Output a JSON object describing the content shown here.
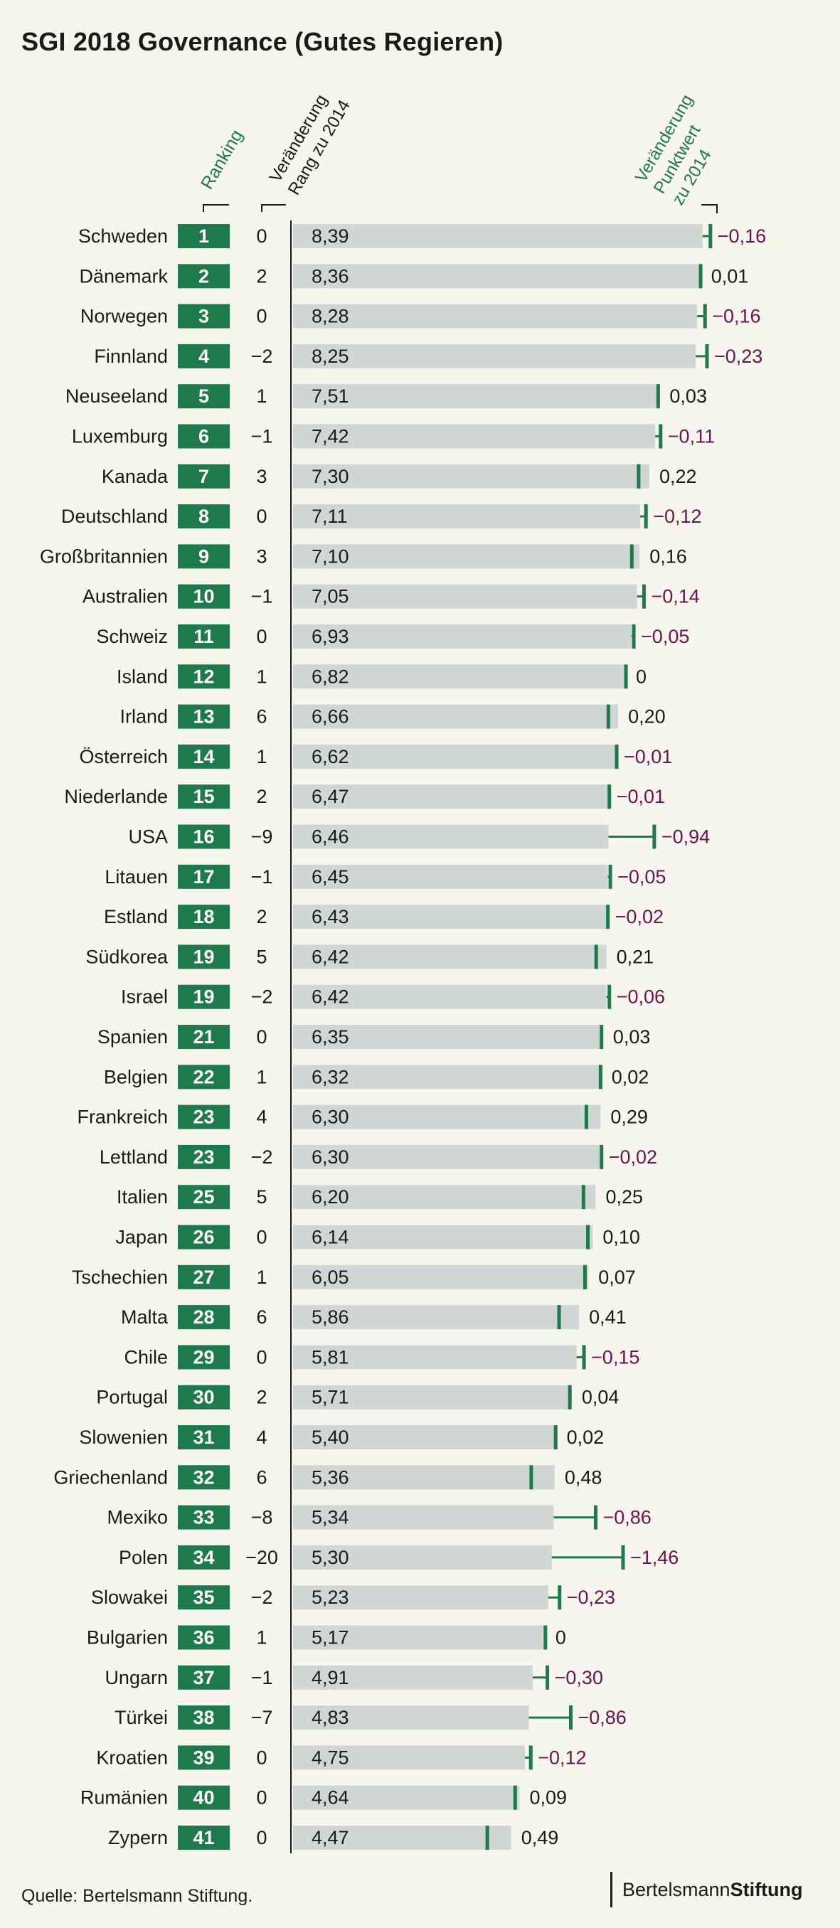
{
  "title": "SGI 2018 Governance (Gutes Regieren)",
  "source": "Quelle: Bertelsmann Stiftung.",
  "brand": {
    "part1": "Bertelsmann",
    "part2": "Stiftung"
  },
  "colors": {
    "background": "#f7f6ec",
    "rank_box": "#1e7a4a",
    "bar": "#d0d6d4",
    "marker": "#1e7a4a",
    "negative_text": "#6e1250",
    "positive_text": "#1a1a1a",
    "header_green": "#1e7a4a"
  },
  "chart_data": {
    "type": "bar",
    "title": "SGI 2018 Governance (Gutes Regieren)",
    "column_headers": {
      "ranking": "Ranking",
      "rank_change_line1": "Veränderung",
      "rank_change_line2": "Rang zu 2014",
      "score_change_line1": "Veränderung",
      "score_change_line2": "Punktwert",
      "score_change_line3": "zu 2014"
    },
    "rows": [
      {
        "country": "Schweden",
        "rank": "1",
        "rank_change": "0",
        "score": 8.39,
        "score_label": "8,39",
        "change": -0.16,
        "change_label": "−0,16"
      },
      {
        "country": "Dänemark",
        "rank": "2",
        "rank_change": "2",
        "score": 8.36,
        "score_label": "8,36",
        "change": 0.01,
        "change_label": "0,01"
      },
      {
        "country": "Norwegen",
        "rank": "3",
        "rank_change": "0",
        "score": 8.28,
        "score_label": "8,28",
        "change": -0.16,
        "change_label": "−0,16"
      },
      {
        "country": "Finnland",
        "rank": "4",
        "rank_change": "−2",
        "score": 8.25,
        "score_label": "8,25",
        "change": -0.23,
        "change_label": "−0,23"
      },
      {
        "country": "Neuseeland",
        "rank": "5",
        "rank_change": "1",
        "score": 7.51,
        "score_label": "7,51",
        "change": 0.03,
        "change_label": "0,03"
      },
      {
        "country": "Luxemburg",
        "rank": "6",
        "rank_change": "−1",
        "score": 7.42,
        "score_label": "7,42",
        "change": -0.11,
        "change_label": "−0,11"
      },
      {
        "country": "Kanada",
        "rank": "7",
        "rank_change": "3",
        "score": 7.3,
        "score_label": "7,30",
        "change": 0.22,
        "change_label": "0,22"
      },
      {
        "country": "Deutschland",
        "rank": "8",
        "rank_change": "0",
        "score": 7.11,
        "score_label": "7,11",
        "change": -0.12,
        "change_label": "−0,12"
      },
      {
        "country": "Großbritannien",
        "rank": "9",
        "rank_change": "3",
        "score": 7.1,
        "score_label": "7,10",
        "change": 0.16,
        "change_label": "0,16"
      },
      {
        "country": "Australien",
        "rank": "10",
        "rank_change": "−1",
        "score": 7.05,
        "score_label": "7,05",
        "change": -0.14,
        "change_label": "−0,14"
      },
      {
        "country": "Schweiz",
        "rank": "11",
        "rank_change": "0",
        "score": 6.93,
        "score_label": "6,93",
        "change": -0.05,
        "change_label": "−0,05"
      },
      {
        "country": "Island",
        "rank": "12",
        "rank_change": "1",
        "score": 6.82,
        "score_label": "6,82",
        "change": 0,
        "change_label": "0"
      },
      {
        "country": "Irland",
        "rank": "13",
        "rank_change": "6",
        "score": 6.66,
        "score_label": "6,66",
        "change": 0.2,
        "change_label": "0,20"
      },
      {
        "country": "Österreich",
        "rank": "14",
        "rank_change": "1",
        "score": 6.62,
        "score_label": "6,62",
        "change": -0.01,
        "change_label": "−0,01"
      },
      {
        "country": "Niederlande",
        "rank": "15",
        "rank_change": "2",
        "score": 6.47,
        "score_label": "6,47",
        "change": -0.01,
        "change_label": "−0,01"
      },
      {
        "country": "USA",
        "rank": "16",
        "rank_change": "−9",
        "score": 6.46,
        "score_label": "6,46",
        "change": -0.94,
        "change_label": "−0,94"
      },
      {
        "country": "Litauen",
        "rank": "17",
        "rank_change": "−1",
        "score": 6.45,
        "score_label": "6,45",
        "change": -0.05,
        "change_label": "−0,05"
      },
      {
        "country": "Estland",
        "rank": "18",
        "rank_change": "2",
        "score": 6.43,
        "score_label": "6,43",
        "change": -0.02,
        "change_label": "−0,02"
      },
      {
        "country": "Südkorea",
        "rank": "19",
        "rank_change": "5",
        "score": 6.42,
        "score_label": "6,42",
        "change": 0.21,
        "change_label": "0,21"
      },
      {
        "country": "Israel",
        "rank": "19",
        "rank_change": "−2",
        "score": 6.42,
        "score_label": "6,42",
        "change": -0.06,
        "change_label": "−0,06"
      },
      {
        "country": "Spanien",
        "rank": "21",
        "rank_change": "0",
        "score": 6.35,
        "score_label": "6,35",
        "change": 0.03,
        "change_label": "0,03"
      },
      {
        "country": "Belgien",
        "rank": "22",
        "rank_change": "1",
        "score": 6.32,
        "score_label": "6,32",
        "change": 0.02,
        "change_label": "0,02"
      },
      {
        "country": "Frankreich",
        "rank": "23",
        "rank_change": "4",
        "score": 6.3,
        "score_label": "6,30",
        "change": 0.29,
        "change_label": "0,29"
      },
      {
        "country": "Lettland",
        "rank": "23",
        "rank_change": "−2",
        "score": 6.3,
        "score_label": "6,30",
        "change": -0.02,
        "change_label": "−0,02"
      },
      {
        "country": "Italien",
        "rank": "25",
        "rank_change": "5",
        "score": 6.2,
        "score_label": "6,20",
        "change": 0.25,
        "change_label": "0,25"
      },
      {
        "country": "Japan",
        "rank": "26",
        "rank_change": "0",
        "score": 6.14,
        "score_label": "6,14",
        "change": 0.1,
        "change_label": "0,10"
      },
      {
        "country": "Tschechien",
        "rank": "27",
        "rank_change": "1",
        "score": 6.05,
        "score_label": "6,05",
        "change": 0.07,
        "change_label": "0,07"
      },
      {
        "country": "Malta",
        "rank": "28",
        "rank_change": "6",
        "score": 5.86,
        "score_label": "5,86",
        "change": 0.41,
        "change_label": "0,41"
      },
      {
        "country": "Chile",
        "rank": "29",
        "rank_change": "0",
        "score": 5.81,
        "score_label": "5,81",
        "change": -0.15,
        "change_label": "−0,15"
      },
      {
        "country": "Portugal",
        "rank": "30",
        "rank_change": "2",
        "score": 5.71,
        "score_label": "5,71",
        "change": 0.04,
        "change_label": "0,04"
      },
      {
        "country": "Slowenien",
        "rank": "31",
        "rank_change": "4",
        "score": 5.4,
        "score_label": "5,40",
        "change": 0.02,
        "change_label": "0,02"
      },
      {
        "country": "Griechenland",
        "rank": "32",
        "rank_change": "6",
        "score": 5.36,
        "score_label": "5,36",
        "change": 0.48,
        "change_label": "0,48"
      },
      {
        "country": "Mexiko",
        "rank": "33",
        "rank_change": "−8",
        "score": 5.34,
        "score_label": "5,34",
        "change": -0.86,
        "change_label": "−0,86"
      },
      {
        "country": "Polen",
        "rank": "34",
        "rank_change": "−20",
        "score": 5.3,
        "score_label": "5,30",
        "change": -1.46,
        "change_label": "−1,46"
      },
      {
        "country": "Slowakei",
        "rank": "35",
        "rank_change": "−2",
        "score": 5.23,
        "score_label": "5,23",
        "change": -0.23,
        "change_label": "−0,23"
      },
      {
        "country": "Bulgarien",
        "rank": "36",
        "rank_change": "1",
        "score": 5.17,
        "score_label": "5,17",
        "change": 0,
        "change_label": "0"
      },
      {
        "country": "Ungarn",
        "rank": "37",
        "rank_change": "−1",
        "score": 4.91,
        "score_label": "4,91",
        "change": -0.3,
        "change_label": "−0,30"
      },
      {
        "country": "Türkei",
        "rank": "38",
        "rank_change": "−7",
        "score": 4.83,
        "score_label": "4,83",
        "change": -0.86,
        "change_label": "−0,86"
      },
      {
        "country": "Kroatien",
        "rank": "39",
        "rank_change": "0",
        "score": 4.75,
        "score_label": "4,75",
        "change": -0.12,
        "change_label": "−0,12"
      },
      {
        "country": "Rumänien",
        "rank": "40",
        "rank_change": "0",
        "score": 4.64,
        "score_label": "4,64",
        "change": 0.09,
        "change_label": "0,09"
      },
      {
        "country": "Zypern",
        "rank": "41",
        "rank_change": "0",
        "score": 4.47,
        "score_label": "4,47",
        "change": 0.49,
        "change_label": "0,49"
      }
    ]
  }
}
